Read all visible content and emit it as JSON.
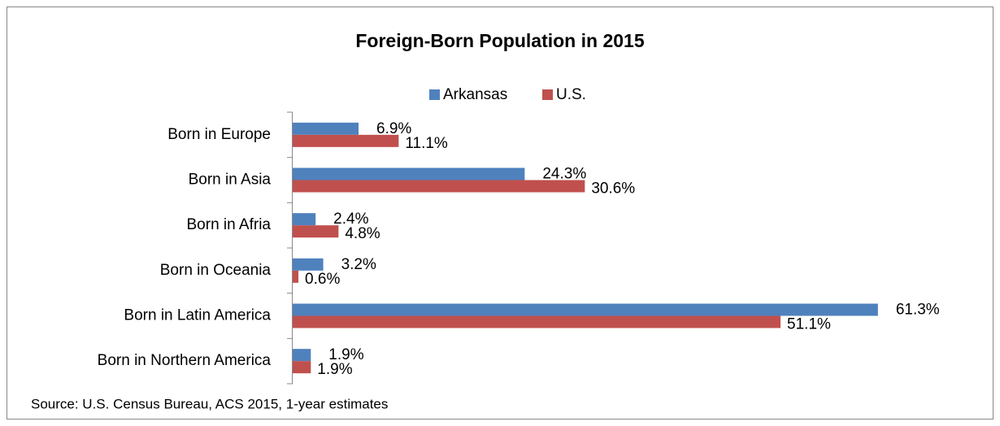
{
  "chart_data": {
    "type": "hbar",
    "title": "Foreign-Born Population in 2015",
    "categories": [
      "Born in Europe",
      "Born in Asia",
      "Born in Afria",
      "Born in Oceania",
      "Born in Latin America",
      "Born in Northern America"
    ],
    "series": [
      {
        "name": "Arkansas",
        "color": "#4f81bd",
        "values": [
          6.9,
          24.3,
          2.4,
          3.2,
          61.3,
          1.9
        ],
        "value_labels": [
          "6.9%",
          "24.3%",
          "2.4%",
          "3.2%",
          "61.3%",
          "1.9%"
        ]
      },
      {
        "name": "U.S.",
        "color": "#c0504d",
        "values": [
          11.1,
          30.6,
          4.8,
          0.6,
          51.1,
          1.9
        ],
        "value_labels": [
          "11.1%",
          "30.6%",
          "4.8%",
          "0.6%",
          "51.1%",
          "1.9%"
        ]
      }
    ],
    "xlim": [
      0,
      70
    ],
    "legend": "top",
    "source": "Source: U.S. Census Bureau, ACS 2015, 1-year estimates"
  }
}
